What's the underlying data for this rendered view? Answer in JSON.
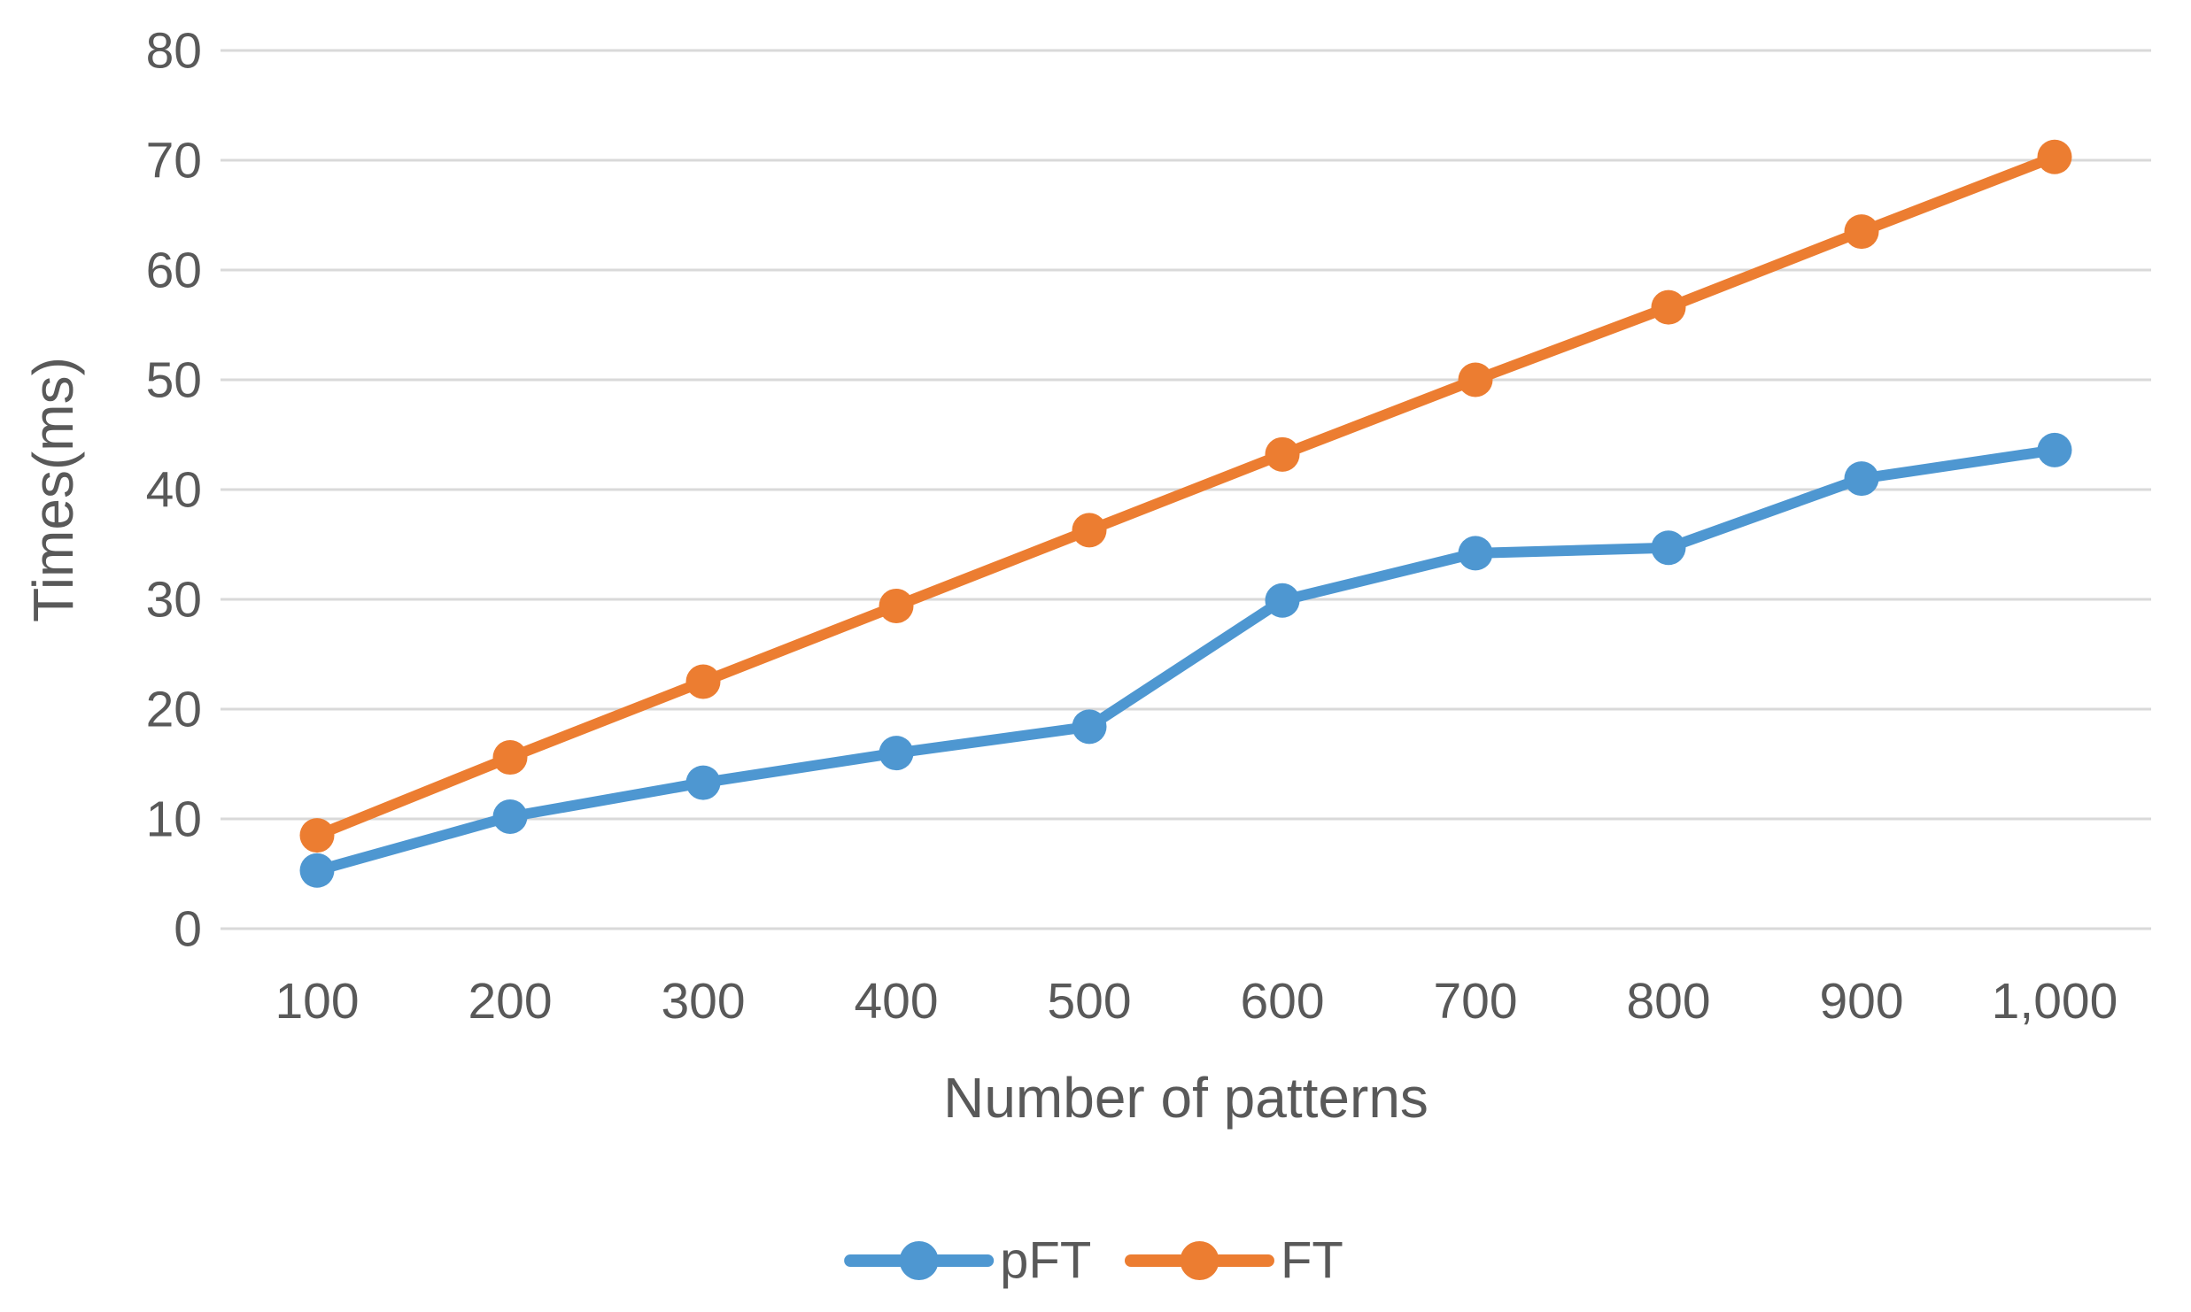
{
  "chart_data": {
    "type": "line",
    "title": "",
    "categories": [
      "100",
      "200",
      "300",
      "400",
      "500",
      "600",
      "700",
      "800",
      "900",
      "1,000"
    ],
    "series": [
      {
        "name": "pFT",
        "color": "#4E97D1",
        "values": [
          5.3,
          10.2,
          13.3,
          16.0,
          18.4,
          29.9,
          34.2,
          34.7,
          41.0,
          43.6
        ]
      },
      {
        "name": "FT",
        "color": "#EC7D31",
        "values": [
          8.5,
          15.6,
          22.5,
          29.4,
          36.3,
          43.2,
          50.0,
          56.6,
          63.5,
          70.3
        ]
      }
    ],
    "xlabel": "Number of patterns",
    "ylabel": "Times(ms)",
    "ylim": [
      0,
      80
    ],
    "ytick_step": 10,
    "yticks": [
      "0",
      "10",
      "20",
      "30",
      "40",
      "50",
      "60",
      "70",
      "80"
    ],
    "grid": "horizontal-only",
    "legend_position": "bottom-center",
    "marker": "circle",
    "axis_text_color": "#595959",
    "gridline_color": "#D9D9D9",
    "background_color": "#FFFFFF"
  }
}
